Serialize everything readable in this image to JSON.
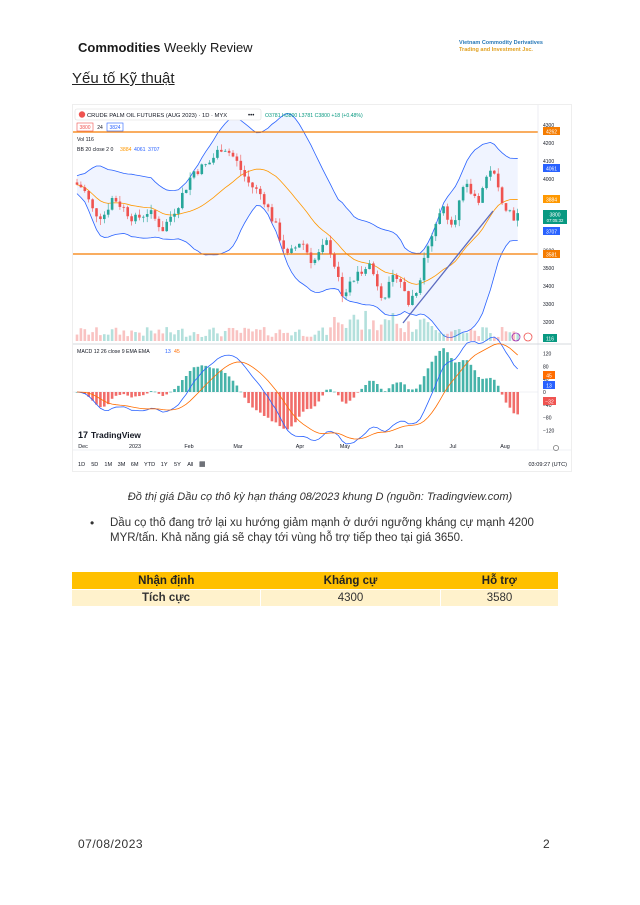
{
  "header": {
    "title_bold": "Commodities",
    "title_rest": " Weekly Review",
    "company_line1": "Vietnam Commodity Derivatives",
    "company_line2": "Trading and Investment Jsc."
  },
  "section_title": "Yếu tố Kỹ thuật",
  "chart": {
    "symbol_line": "CRUDE PALM OIL FUTURES (AUG 2023) · 1D · MYX",
    "ohlc": "O3781 H3800 L3781 C3800 +18 (+0.48%)",
    "bid": "3800",
    "spread": "24",
    "ask": "3824",
    "vol_label": "Vol 116",
    "bb_label": "BB 20 close 2 0",
    "bb_values": [
      "3884",
      "4061",
      "3707"
    ],
    "macd_label": "MACD 12 26 close 9 EMA EMA",
    "macd_values": [
      "13",
      "45"
    ],
    "logo": "TradingView",
    "price_ticks": [
      "4300",
      "4200",
      "4100",
      "4000",
      "3800",
      "3700",
      "3600",
      "3500",
      "3400",
      "3300",
      "3200"
    ],
    "price_badges": {
      "resistance": "4262",
      "bb_upper": "4061",
      "bb_mid": "3884",
      "last": "3800",
      "last_time": "07:05:32",
      "bb_lower": "3707",
      "support": "3581",
      "volume": "116"
    },
    "macd_ticks": [
      "120",
      "80",
      "40",
      "0",
      "−40",
      "−80",
      "−120"
    ],
    "macd_badges": [
      "45",
      "13",
      "−32"
    ],
    "time_labels": [
      "Dec",
      "2023",
      "Feb",
      "Mar",
      "Apr",
      "May",
      "Jun",
      "Jul",
      "Aug"
    ],
    "ranges": [
      "1D",
      "5D",
      "1M",
      "3M",
      "6M",
      "YTD",
      "1Y",
      "5Y",
      "All"
    ],
    "clock": "03:09:27 (UTC)",
    "colors": {
      "up": "#26a69a",
      "down": "#ef5350",
      "level": "#f57c00",
      "bb": "#2962ff",
      "mid": "#ff9800"
    }
  },
  "caption": "Đồ thị giá Dầu cọ thô kỳ hạn tháng 08/2023 khung D (nguồn: Tradingview.com)",
  "bullet": "Dầu cọ thô đang trở lại xu hướng giảm mạnh ở dưới ngưỡng kháng cự mạnh 4200 MYR/tấn. Khả năng giá sẽ chạy tới vùng hỗ trợ tiếp theo tại giá 3650.",
  "table": {
    "headers": [
      "Nhận định",
      "Kháng cự",
      "Hỗ trợ"
    ],
    "rows": [
      [
        "Tích cực",
        "4300",
        "3580"
      ]
    ]
  },
  "footer": {
    "date": "07/08/2023",
    "page": "2"
  }
}
